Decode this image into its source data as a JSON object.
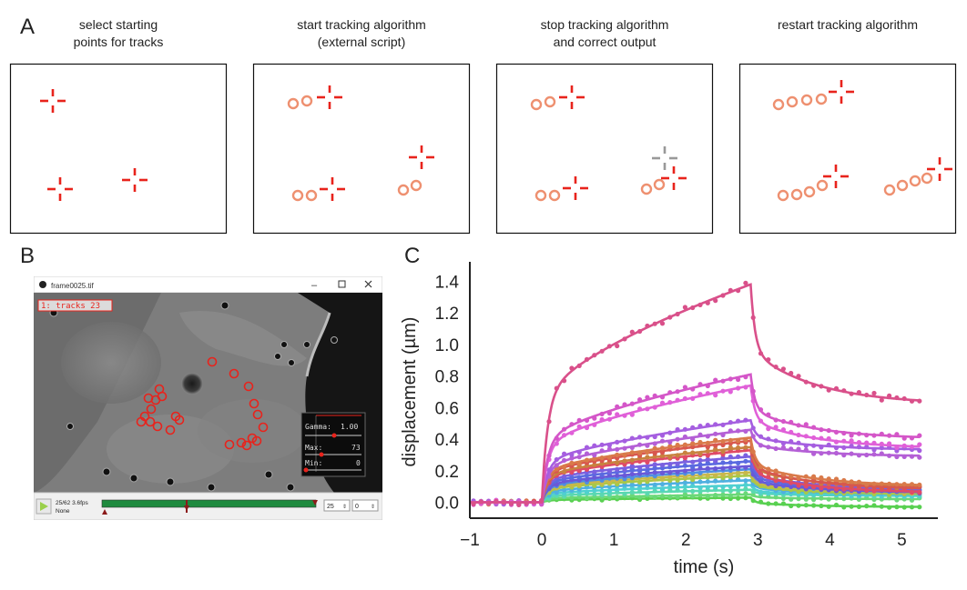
{
  "panel_labels": {
    "a": "A",
    "b": "B",
    "c": "C"
  },
  "steps": [
    {
      "line1": "select starting",
      "line2": "points for tracks"
    },
    {
      "line1": "start tracking algorithm",
      "line2": "(external script)"
    },
    {
      "line1": "stop tracking algorithm",
      "line2": "and correct output"
    },
    {
      "line1": "restart tracking algorithm",
      "line2": ""
    }
  ],
  "viewer": {
    "window_title": "frame0025.tif",
    "overlay_label": "1: tracks 23",
    "contrast": {
      "gamma_label": "Gamma:",
      "gamma_value": "1.00",
      "max_label": "Max:",
      "max_value": "73",
      "min_label": "Min:",
      "min_value": "0"
    },
    "status_line1": "25/62 3.6fps",
    "status_line2": "None",
    "frame_value": "25",
    "channel_value": "0"
  },
  "colors": {
    "marker": "#e8231c",
    "track": "#ee9070",
    "corrected": "#999999"
  },
  "chart_data": {
    "type": "scatter",
    "xlabel": "time (s)",
    "ylabel": "displacement (µm)",
    "xlim": [
      -1,
      5.5
    ],
    "ylim": [
      -0.1,
      1.5
    ],
    "xticks": [
      "−1",
      "0",
      "1",
      "2",
      "3",
      "4",
      "5"
    ],
    "yticks": [
      "0.0",
      "0.2",
      "0.4",
      "0.6",
      "0.8",
      "1.0",
      "1.2",
      "1.4"
    ],
    "step_on": 0,
    "step_off": 2.9,
    "series": [
      {
        "peak": 1.38,
        "end": 0.62,
        "color": "#d9508a"
      },
      {
        "peak": 0.81,
        "end": 0.4,
        "color": "#d456c8"
      },
      {
        "peak": 0.74,
        "end": 0.34,
        "color": "#e060d8"
      },
      {
        "peak": 0.52,
        "end": 0.33,
        "color": "#a55ee0"
      },
      {
        "peak": 0.46,
        "end": 0.29,
        "color": "#b45fd6"
      },
      {
        "peak": 0.41,
        "end": 0.1,
        "color": "#d97a4a"
      },
      {
        "peak": 0.39,
        "end": 0.08,
        "color": "#d8574e"
      },
      {
        "peak": 0.35,
        "end": 0.09,
        "color": "#c8823f"
      },
      {
        "peak": 0.33,
        "end": 0.06,
        "color": "#e04a66"
      },
      {
        "peak": 0.29,
        "end": 0.08,
        "color": "#7a60e0"
      },
      {
        "peak": 0.26,
        "end": 0.07,
        "color": "#5a6ae0"
      },
      {
        "peak": 0.23,
        "end": 0.06,
        "color": "#6a58d8"
      },
      {
        "peak": 0.21,
        "end": 0.07,
        "color": "#4f8fe0"
      },
      {
        "peak": 0.19,
        "end": 0.06,
        "color": "#c8b84a"
      },
      {
        "peak": 0.17,
        "end": 0.05,
        "color": "#a8c848"
      },
      {
        "peak": 0.14,
        "end": 0.05,
        "color": "#4fb0e0"
      },
      {
        "peak": 0.11,
        "end": 0.04,
        "color": "#4fd0d0"
      },
      {
        "peak": 0.08,
        "end": 0.04,
        "color": "#5ad8b0"
      },
      {
        "peak": 0.05,
        "end": 0.02,
        "color": "#6ad878"
      },
      {
        "peak": 0.03,
        "end": -0.03,
        "color": "#58d050"
      }
    ]
  }
}
